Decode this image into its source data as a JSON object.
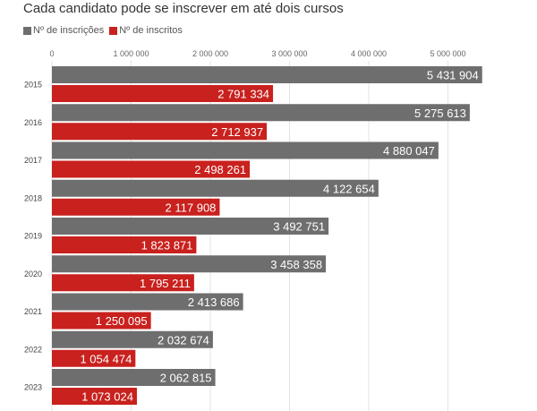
{
  "title": "Cada candidato pode se inscrever em até dois cursos",
  "colors": {
    "inscricoes": "#6e6e6e",
    "inscritos": "#c8211e",
    "grid": "#e3e3e3"
  },
  "chart_data": {
    "type": "bar",
    "orientation": "horizontal",
    "title": "Cada candidato pode se inscrever em até dois cursos",
    "categories": [
      "2015",
      "2016",
      "2017",
      "2018",
      "2019",
      "2020",
      "2021",
      "2022",
      "2023"
    ],
    "series": [
      {
        "name": "Nº de inscrições",
        "color": "#6e6e6e",
        "values": [
          5431904,
          5275613,
          4880047,
          4122654,
          3492751,
          3458358,
          2413686,
          2032674,
          2062815
        ]
      },
      {
        "name": "Nº de inscritos",
        "color": "#c8211e",
        "values": [
          2791334,
          2712937,
          2498261,
          2117908,
          1823871,
          1795211,
          1250095,
          1054474,
          1073024
        ]
      }
    ],
    "value_labels": [
      [
        "5 431 904",
        "5 275 613",
        "4 880 047",
        "4 122 654",
        "3 492 751",
        "3 458 358",
        "2 413 686",
        "2 032 674",
        "2 062 815"
      ],
      [
        "2 791 334",
        "2 712 937",
        "2 498 261",
        "2 117 908",
        "1 823 871",
        "1 795 211",
        "1 250 095",
        "1 054 474",
        "1 073 024"
      ]
    ],
    "xlim": [
      0,
      5500000
    ],
    "xticks": [
      0,
      1000000,
      2000000,
      3000000,
      4000000,
      5000000
    ],
    "xtick_labels": [
      "0",
      "1 000 000",
      "2 000 000",
      "3 000 000",
      "4 000 000",
      "5 000 000"
    ],
    "legend_position": "top-left",
    "grid": true
  }
}
